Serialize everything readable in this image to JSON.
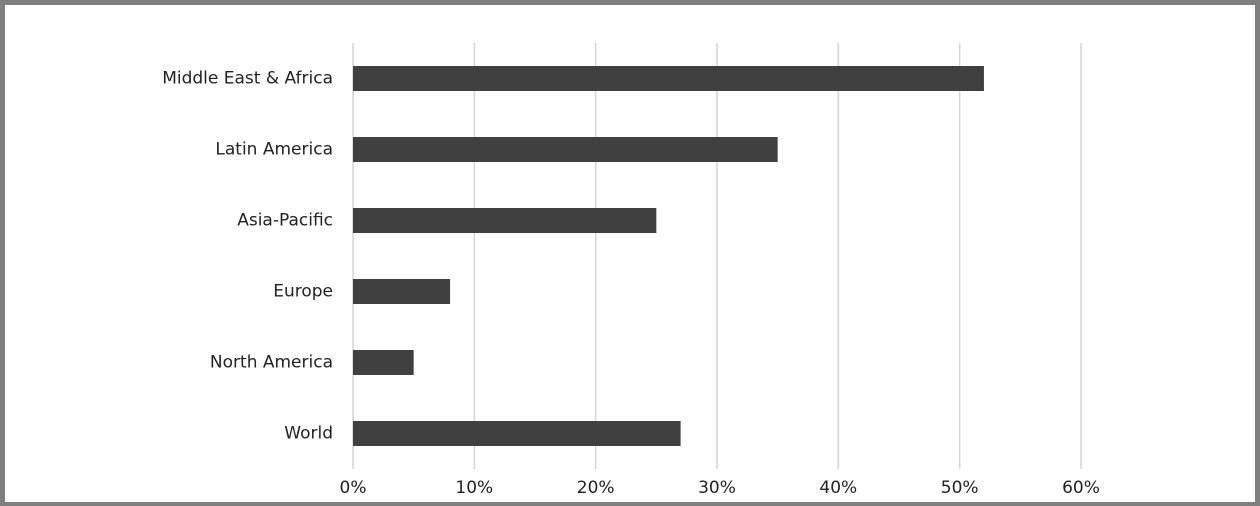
{
  "chart_data": {
    "type": "bar",
    "orientation": "horizontal",
    "categories": [
      "Middle East & Africa",
      "Latin America",
      "Asia-Pacific",
      "Europe",
      "North America",
      "World"
    ],
    "values": [
      52,
      35,
      25,
      8,
      5,
      27
    ],
    "color": "#404040",
    "xlim": [
      0,
      60
    ],
    "xticks": [
      {
        "value": 0,
        "label": "0%"
      },
      {
        "value": 10,
        "label": "10%"
      },
      {
        "value": 20,
        "label": "20%"
      },
      {
        "value": 30,
        "label": "30%"
      },
      {
        "value": 40,
        "label": "40%"
      },
      {
        "value": 50,
        "label": "50%"
      },
      {
        "value": 60,
        "label": "60%"
      }
    ],
    "grid": true
  }
}
